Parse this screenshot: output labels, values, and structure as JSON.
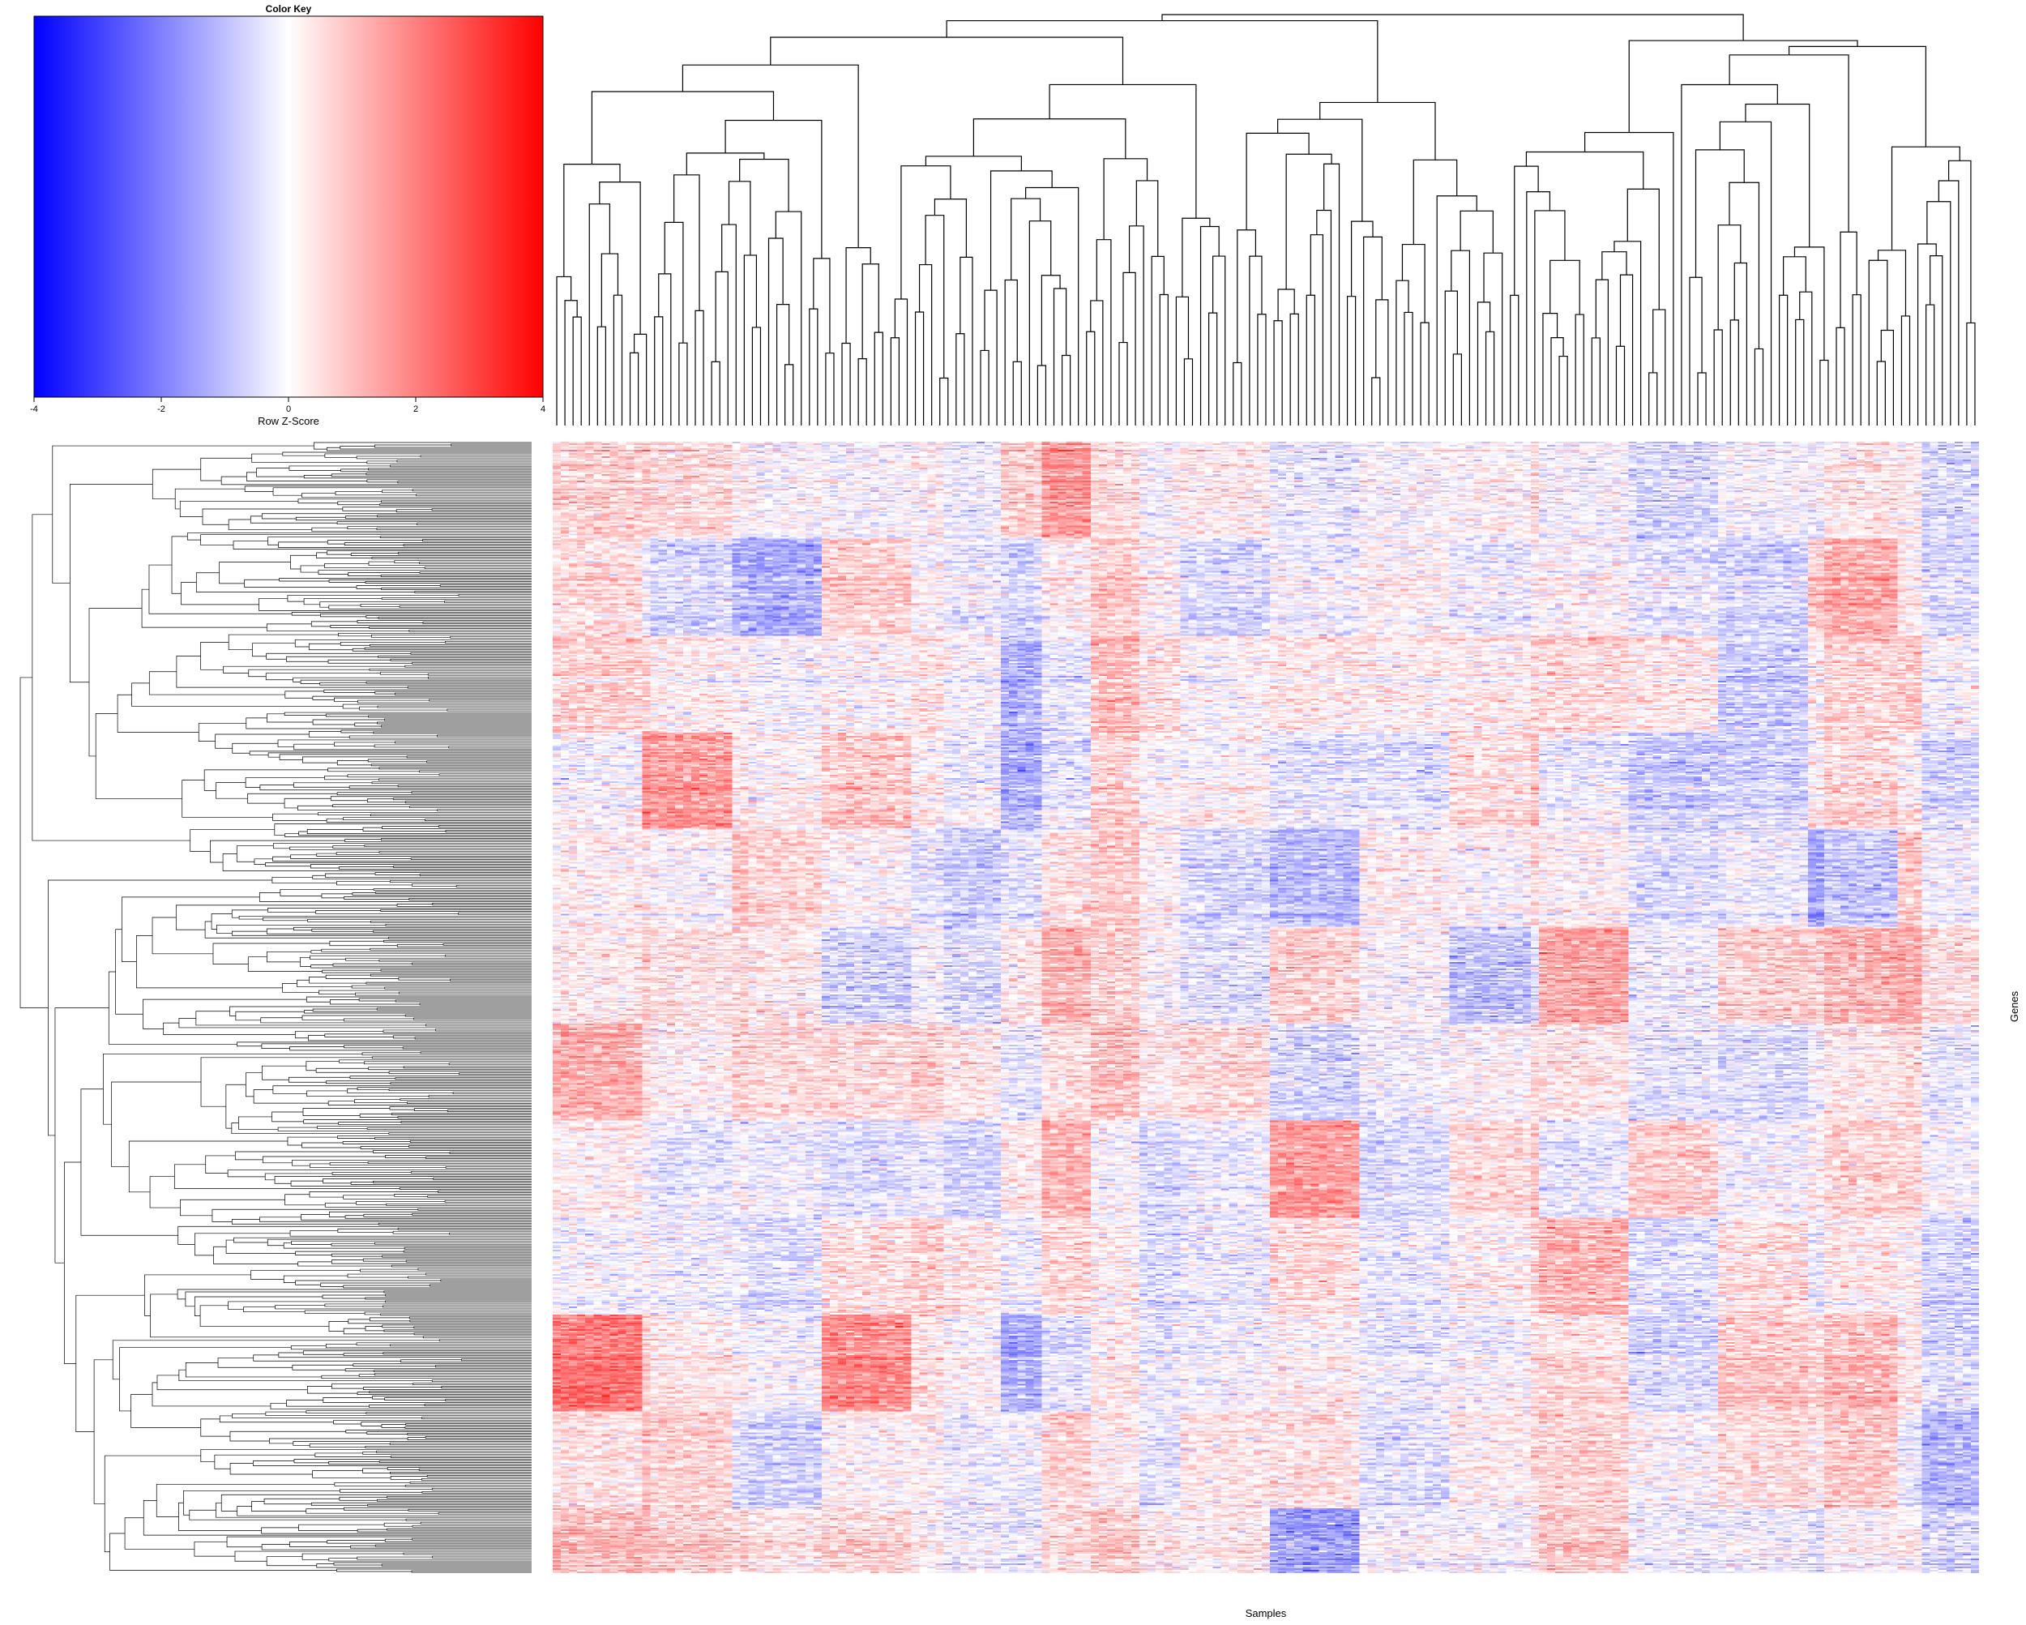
{
  "chart_data": {
    "type": "heatmap",
    "color_key": {
      "title": "Color Key",
      "xlabel": "Row Z-Score",
      "range": [
        -4,
        4
      ],
      "ticks": [
        -4,
        -2,
        0,
        2,
        4
      ],
      "low_color": "#0000ff",
      "mid_color": "#ffffff",
      "high_color": "#ff0000"
    },
    "xlabel": "Samples",
    "ylabel": "Genes",
    "n_samples": 175,
    "n_genes_approx": 700,
    "row_dendrogram": true,
    "column_dendrogram": true,
    "notes": "Z-scored expression matrix clustered by rows and columns; colors span -4 (blue) to 4 (red)."
  }
}
